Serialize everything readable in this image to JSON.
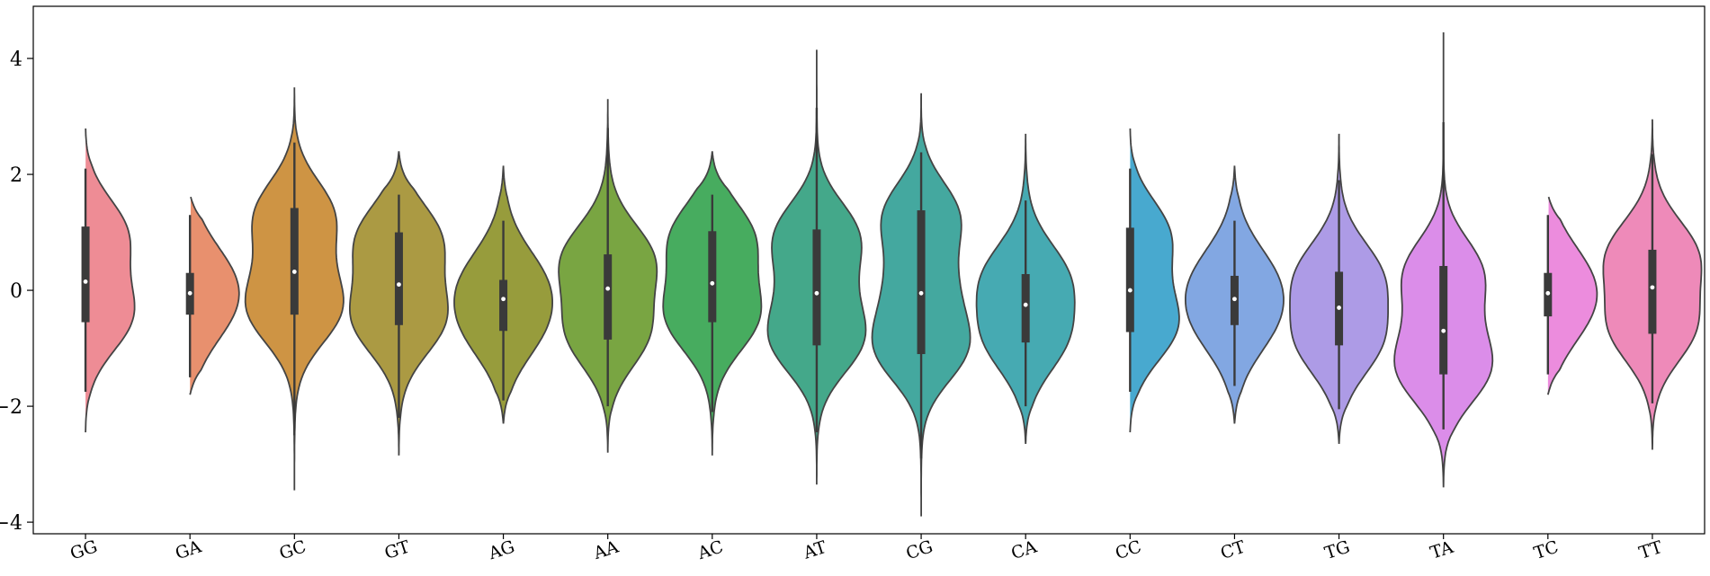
{
  "chart_data": {
    "type": "violin",
    "categories": [
      "GG",
      "GA",
      "GC",
      "GT",
      "AG",
      "AA",
      "AC",
      "AT",
      "CG",
      "CA",
      "CC",
      "CT",
      "TG",
      "TA",
      "TC",
      "TT"
    ],
    "colors": [
      "#ee8c95",
      "#e8906e",
      "#ce9444",
      "#ab9a43",
      "#979c3c",
      "#79a542",
      "#47ac5f",
      "#44a88a",
      "#44a89f",
      "#46aab2",
      "#48a9cf",
      "#82a7e2",
      "#ad9be6",
      "#db8de9",
      "#ec8cdd",
      "#ee8ab9"
    ],
    "violins": [
      {
        "category": "GG",
        "min": -2.45,
        "max": 2.85,
        "median": 0.15,
        "q1": -0.55,
        "q3": 1.1,
        "whisker_low": -1.75,
        "whisker_high": 2.1
      },
      {
        "category": "GA",
        "min": -1.8,
        "max": 1.65,
        "median": -0.05,
        "q1": -0.42,
        "q3": 0.3,
        "whisker_low": -1.5,
        "whisker_high": 1.3
      },
      {
        "category": "GC",
        "min": -3.45,
        "max": 3.5,
        "median": 0.32,
        "q1": -0.42,
        "q3": 1.42,
        "whisker_low": -2.5,
        "whisker_high": 2.55
      },
      {
        "category": "GT",
        "min": -2.85,
        "max": 2.4,
        "median": 0.1,
        "q1": -0.6,
        "q3": 1.0,
        "whisker_low": -2.2,
        "whisker_high": 1.65
      },
      {
        "category": "AG",
        "min": -2.3,
        "max": 2.15,
        "median": -0.15,
        "q1": -0.7,
        "q3": 0.18,
        "whisker_low": -1.9,
        "whisker_high": 1.2
      },
      {
        "category": "AA",
        "min": -2.8,
        "max": 3.3,
        "median": 0.03,
        "q1": -0.85,
        "q3": 0.62,
        "whisker_low": -2.0,
        "whisker_high": 2.8
      },
      {
        "category": "AC",
        "min": -2.85,
        "max": 2.4,
        "median": 0.12,
        "q1": -0.55,
        "q3": 1.02,
        "whisker_low": -2.1,
        "whisker_high": 1.65
      },
      {
        "category": "AT",
        "min": -3.35,
        "max": 4.15,
        "median": -0.05,
        "q1": -0.95,
        "q3": 1.05,
        "whisker_low": -2.45,
        "whisker_high": 3.15
      },
      {
        "category": "CG",
        "min": -3.9,
        "max": 3.4,
        "median": -0.05,
        "q1": -1.1,
        "q3": 1.38,
        "whisker_low": -2.9,
        "whisker_high": 2.38
      },
      {
        "category": "CA",
        "min": -2.65,
        "max": 2.7,
        "median": -0.25,
        "q1": -0.9,
        "q3": 0.28,
        "whisker_low": -2.0,
        "whisker_high": 1.55
      },
      {
        "category": "CC",
        "min": -2.45,
        "max": 2.85,
        "median": 0.0,
        "q1": -0.72,
        "q3": 1.08,
        "whisker_low": -1.75,
        "whisker_high": 2.1
      },
      {
        "category": "CT",
        "min": -2.3,
        "max": 2.15,
        "median": -0.15,
        "q1": -0.6,
        "q3": 0.25,
        "whisker_low": -1.65,
        "whisker_high": 1.2
      },
      {
        "category": "TG",
        "min": -2.65,
        "max": 2.7,
        "median": -0.3,
        "q1": -0.95,
        "q3": 0.32,
        "whisker_low": -2.05,
        "whisker_high": 1.9
      },
      {
        "category": "TA",
        "min": -3.4,
        "max": 4.45,
        "median": -0.7,
        "q1": -1.45,
        "q3": 0.42,
        "whisker_low": -2.4,
        "whisker_high": 2.9
      },
      {
        "category": "TC",
        "min": -1.8,
        "max": 1.65,
        "median": -0.05,
        "q1": -0.45,
        "q3": 0.3,
        "whisker_low": -1.45,
        "whisker_high": 1.3
      },
      {
        "category": "TT",
        "min": -2.75,
        "max": 2.95,
        "median": 0.05,
        "q1": -0.75,
        "q3": 0.7,
        "whisker_low": -1.95,
        "whisker_high": 2.35
      }
    ],
    "yticks": [
      -4,
      -2,
      0,
      2,
      4
    ],
    "ylim": [
      -4.2,
      4.9
    ],
    "title": "",
    "xlabel": "",
    "ylabel": "",
    "grid": false,
    "legend": "none"
  }
}
